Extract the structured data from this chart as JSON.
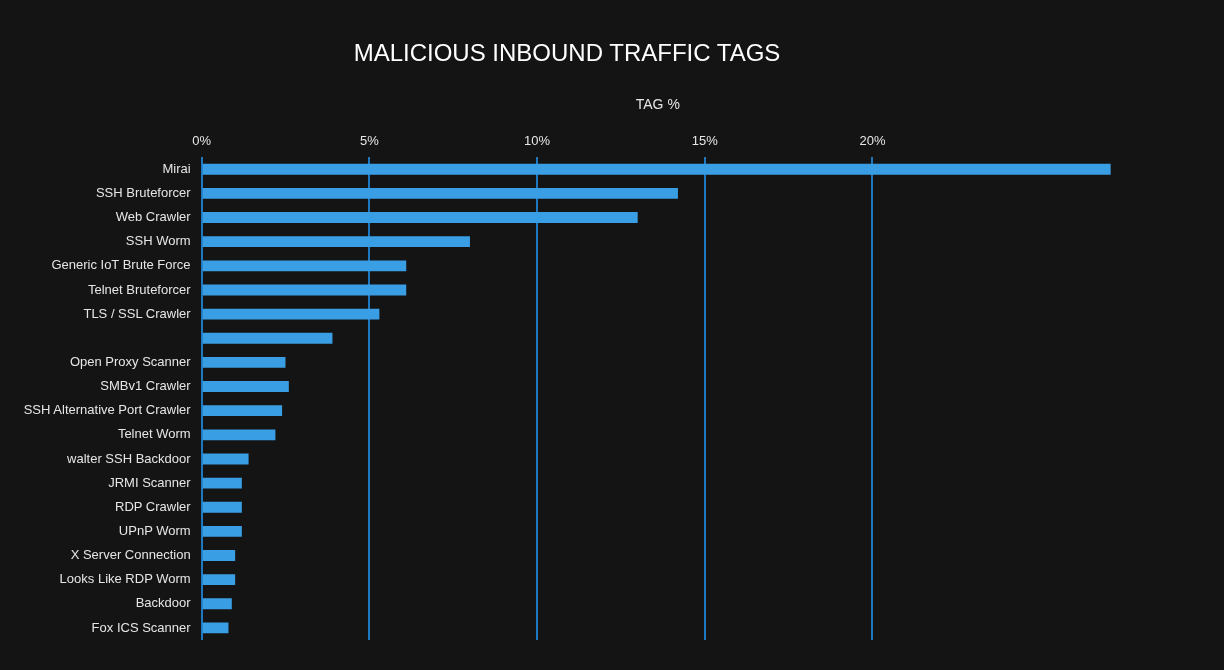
{
  "chart_data": {
    "type": "bar",
    "orientation": "horizontal",
    "title": "MALICIOUS INBOUND TRAFFIC TAGS",
    "xlabel": "TAG %",
    "categories": [
      "Mirai",
      "SSH Bruteforcer",
      "Web Crawler",
      "SSH Worm",
      "Generic IoT Brute Force",
      "Telnet Bruteforcer",
      "TLS / SSL Crawler",
      null,
      "Open Proxy Scanner",
      "SMBv1 Crawler",
      "SSH Alternative Port Crawler",
      "Telnet Worm",
      "walter SSH Backdoor",
      "JRMI Scanner",
      "RDP Crawler",
      "UPnP Worm",
      "X Server Connection",
      "Looks Like RDP Worm",
      "Backdoor",
      "Fox ICS Scanner"
    ],
    "values": [
      27.1,
      14.2,
      13.0,
      8.0,
      6.1,
      6.1,
      5.3,
      3.9,
      2.5,
      2.6,
      2.4,
      2.2,
      1.4,
      1.2,
      1.2,
      1.2,
      1.0,
      1.0,
      0.9,
      0.8
    ],
    "color": "#3a9ee4",
    "xlim": [
      0,
      27.2
    ],
    "xticks": [
      {
        "value": 0,
        "label": "0%"
      },
      {
        "value": 5,
        "label": "5%"
      },
      {
        "value": 10,
        "label": "10%"
      },
      {
        "value": 15,
        "label": "15%"
      },
      {
        "value": 20,
        "label": "20%"
      }
    ],
    "grid": "x",
    "legend": false
  }
}
